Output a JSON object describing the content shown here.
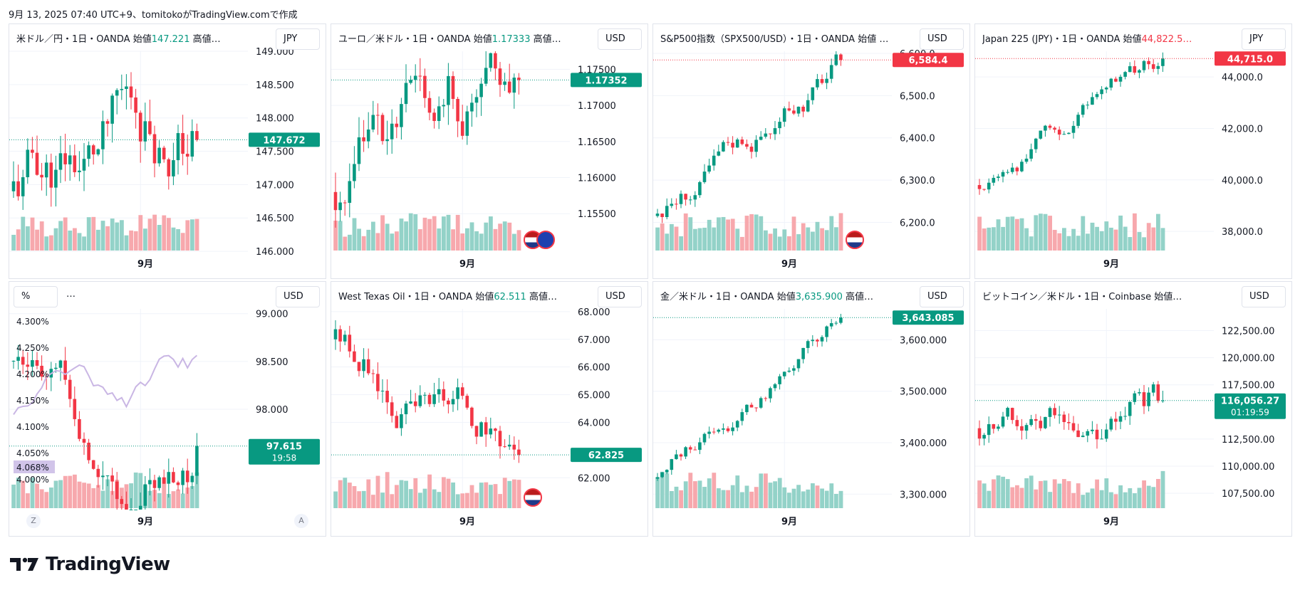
{
  "header": {
    "text": "9月 13, 2025 07:40 UTC+9、tomitokoがTradingView.comで作成"
  },
  "colors": {
    "up": "#089981",
    "down": "#f23645",
    "vol_up": "#93d2c8",
    "vol_down": "#f7a8ad",
    "yield_line": "#c9b6e4",
    "yield_tag": "#d1c4e9"
  },
  "logo": {
    "text": "TradingView",
    "icon": "tradingview-logo-icon"
  },
  "chart_data": [
    {
      "type": "candlestick",
      "id": "usdjpy",
      "legend": {
        "title": "米ドル／円・1日・OANDA",
        "open_label": "始値",
        "open_value": "147.221",
        "rest": "高値…"
      },
      "currency": "JPY",
      "xlabel": "9月",
      "yticks": [
        "149.000",
        "148.500",
        "148.000",
        "147.500",
        "147.000",
        "146.500",
        "146.000"
      ],
      "ylim": [
        145.99,
        149.0
      ],
      "last": {
        "value": "147.672",
        "y": 147.672,
        "color": "#089981"
      },
      "flags": [],
      "seed": 11,
      "start": 146.9,
      "n": 40,
      "vol": 0.55
    },
    {
      "type": "candlestick",
      "id": "eurusd",
      "legend": {
        "title": "ユーロ／米ドル・1日・OANDA",
        "open_label": "始値",
        "open_value": "1.17333",
        "rest": "高値…"
      },
      "currency": "USD",
      "xlabel": "9月",
      "yticks": [
        "1.17500",
        "1.17000",
        "1.16500",
        "1.16000",
        "1.15500"
      ],
      "ylim": [
        1.1497,
        1.1775
      ],
      "last": {
        "value": "1.17352",
        "y": 1.17352,
        "color": "#089981"
      },
      "flags": [
        "us-flag-icon",
        "eu-flag-icon"
      ],
      "seed": 23,
      "start": 1.158,
      "n": 40,
      "vol": 0.0048
    },
    {
      "type": "candlestick",
      "id": "spx500",
      "legend": {
        "title": "S&P500指数（SPX500/USD）・1日・OANDA",
        "open_label": "始値",
        "open_value": "",
        "rest": "…"
      },
      "currency": "USD",
      "xlabel": "9月",
      "yticks": [
        "6,600.0",
        "6,500.0",
        "6,400.0",
        "6,300.0",
        "6,200.0"
      ],
      "ylim": [
        6130,
        6605
      ],
      "last": {
        "value": "6,584.4",
        "y": 6584.4,
        "color": "#f23645"
      },
      "flags": [
        "us-flag-icon"
      ],
      "seed": 31,
      "start": 6215,
      "n": 40,
      "vol": 30
    },
    {
      "type": "candlestick",
      "id": "jp225",
      "legend": {
        "title": "Japan 225 (JPY)・1日・OANDA",
        "open_label": "始値",
        "open_value": "44,822.5…",
        "rest": ""
      },
      "currency": "JPY",
      "xlabel": "9月",
      "yticks": [
        "44,000.0",
        "42,000.0",
        "40,000.0",
        "38,000.0"
      ],
      "ylim": [
        37200,
        45000
      ],
      "last": {
        "value": "44,715.0",
        "y": 44715,
        "color": "#f23645",
        "legend_down": true
      },
      "flags": [],
      "seed": 47,
      "start": 39800,
      "n": 40,
      "vol": 400
    },
    {
      "type": "candlestick",
      "id": "dxy",
      "legend": {
        "title": "",
        "open_label": "",
        "open_value": "",
        "rest": ""
      },
      "pct_button": "%",
      "dots": "…",
      "currency": "USD",
      "xlabel": "9月",
      "yticks": [
        "99.000",
        "98.500",
        "98.000"
      ],
      "ylim": [
        96.95,
        99.05
      ],
      "pct_ticks": [
        "4.300%",
        "4.250%",
        "4.200%",
        "4.150%",
        "4.100%",
        "4.050%",
        "4.000%"
      ],
      "last": {
        "value": "97.615",
        "sub": "19:58",
        "y": 97.615,
        "color": "#089981"
      },
      "yield_tag": "4.068%",
      "flags": [],
      "seed": 59,
      "start": 98.5,
      "n": 40,
      "vol": 0.26,
      "za": [
        "Z",
        "A"
      ]
    },
    {
      "type": "candlestick",
      "id": "wti",
      "legend": {
        "title": "West Texas Oil・1日・OANDA",
        "open_label": "始値",
        "open_value": "62.511",
        "rest": "高値…"
      },
      "currency": "USD",
      "xlabel": "9月",
      "yticks": [
        "68.000",
        "67.000",
        "66.000",
        "65.000",
        "64.000",
        "62.000"
      ],
      "ylim": [
        60.85,
        68.1
      ],
      "last": {
        "value": "62.825",
        "y": 62.825,
        "color": "#089981"
      },
      "flags": [
        "us-flag-icon"
      ],
      "seed": 67,
      "start": 67.0,
      "n": 40,
      "vol": 0.75
    },
    {
      "type": "candlestick",
      "id": "xauusd",
      "legend": {
        "title": "金／米ドル・1日・OANDA",
        "open_label": "始値",
        "open_value": "3,635.900",
        "rest": "高値…"
      },
      "currency": "USD",
      "xlabel": "9月",
      "yticks": [
        "3,600.000",
        "3,500.000",
        "3,400.000",
        "3,300.000"
      ],
      "ylim": [
        3270,
        3660
      ],
      "last": {
        "value": "3,643.085",
        "y": 3643.085,
        "color": "#089981"
      },
      "flags": [],
      "seed": 79,
      "start": 3330,
      "n": 40,
      "vol": 18
    },
    {
      "type": "candlestick",
      "id": "btcusd",
      "legend": {
        "title": "ビットコイン／米ドル・1日・Coinbase",
        "open_label": "始値…",
        "open_value": "",
        "rest": ""
      },
      "currency": "USD",
      "xlabel": "9月",
      "yticks": [
        "122,500.00",
        "120,000.00",
        "117,500.00",
        "112,500.00",
        "110,000.00",
        "107,500.00"
      ],
      "ylim": [
        106000,
        124500
      ],
      "last": {
        "value": "116,056.27",
        "sub": "01:19:59",
        "y": 116056.27,
        "color": "#089981"
      },
      "flags": [],
      "seed": 97,
      "start": 113500,
      "n": 40,
      "vol": 1500
    }
  ]
}
